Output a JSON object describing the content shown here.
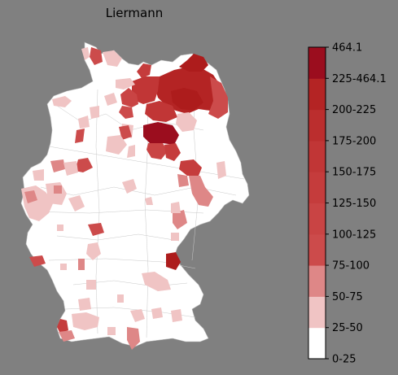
{
  "title": "Liermann",
  "colors": {
    "background": "#808080",
    "land": "#ffffff",
    "borders": "#b8b8b8"
  },
  "legend": {
    "bins": [
      {
        "label": "0-25",
        "color": "#ffffff"
      },
      {
        "label": "25-50",
        "color": "#f0c4c4"
      },
      {
        "label": "50-75",
        "color": "#de8787"
      },
      {
        "label": "75-100",
        "color": "#cc4b4b"
      },
      {
        "label": "100-125",
        "color": "#c94444"
      },
      {
        "label": "125-150",
        "color": "#c53c3c"
      },
      {
        "label": "150-175",
        "color": "#c13636"
      },
      {
        "label": "175-200",
        "color": "#bb2e2e"
      },
      {
        "label": "200-225",
        "color": "#b42424"
      },
      {
        "label": "225-464.1",
        "color": "#ad1c1c"
      },
      {
        "label": "464.1",
        "color": "#9b0d1e"
      }
    ]
  },
  "chart_data": {
    "type": "choropleth",
    "title": "Liermann",
    "region": "Germany (districts)",
    "colorbar_ticks": [
      "0-25",
      "25-50",
      "50-75",
      "75-100",
      "100-125",
      "125-150",
      "150-175",
      "175-200",
      "200-225",
      "225-464.1",
      "464.1"
    ]
  }
}
